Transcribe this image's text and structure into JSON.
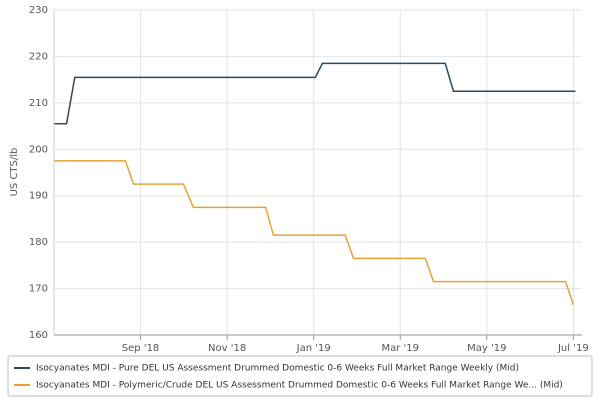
{
  "chart_data": {
    "type": "line",
    "y_label": "US CTS/lb",
    "xlim": [
      7,
      19.2
    ],
    "ylim": [
      160,
      230
    ],
    "xticks": [
      {
        "value": 9,
        "label": "Sep '18"
      },
      {
        "value": 11,
        "label": "Nov '18"
      },
      {
        "value": 13,
        "label": "Jan '19"
      },
      {
        "value": 15,
        "label": "Mar '19"
      },
      {
        "value": 17,
        "label": "May '19"
      },
      {
        "value": 19,
        "label": "Jul '19"
      }
    ],
    "yticks": [
      160,
      170,
      180,
      190,
      200,
      210,
      220,
      230
    ],
    "grid": true,
    "legend": "bottom",
    "series": [
      {
        "name": "Isocyanates MDI - Pure DEL US Assessment Drummed Domestic 0-6 Weeks Full Market Range Weekly (Mid)",
        "color": "#2d4a5c",
        "x": [
          7.01,
          7.29,
          7.48,
          13.04,
          13.2,
          16.04,
          16.23,
          19.05
        ],
        "values": [
          205.5,
          205.5,
          215.5,
          215.5,
          218.5,
          218.5,
          212.5,
          212.5
        ]
      },
      {
        "name": "Isocyanates MDI - Polymeric/Crude DEL US Assessment Drummed Domestic 0-6 Weeks Full Market Range We... (Mid)",
        "color": "#e6a236",
        "x": [
          7.01,
          8.65,
          8.84,
          9.99,
          10.22,
          11.89,
          12.07,
          13.73,
          13.92,
          15.58,
          15.77,
          18.82,
          19.0
        ],
        "values": [
          197.5,
          197.5,
          192.5,
          192.5,
          187.5,
          187.5,
          181.5,
          181.5,
          176.5,
          176.5,
          171.5,
          171.5,
          166.5
        ]
      }
    ]
  }
}
